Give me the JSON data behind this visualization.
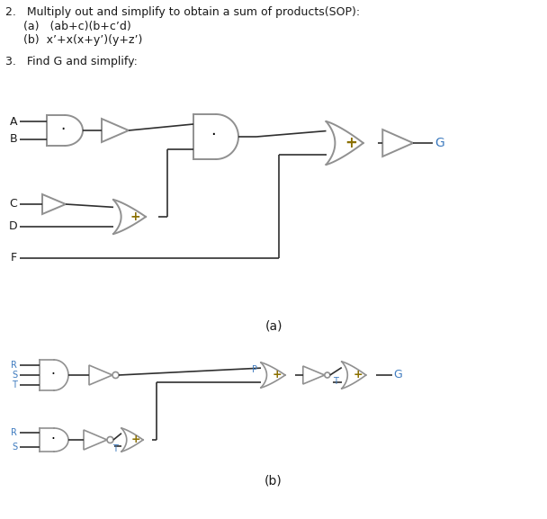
{
  "title_text": "2.   Multiply out and simplify to obtain a sum of products(SOP):",
  "sub_a": "     (a)   (ab+c)(b+c’d)",
  "sub_b": "     (b)  x’+x(x+y’)(y+z’)",
  "item3": "3.   Find G and simplify:",
  "label_a": "(a)",
  "label_b": "(b)",
  "text_color": "#3d7abf",
  "gate_color": "#909090",
  "line_color": "#303030",
  "bg_color": "#ffffff",
  "plus_color": "#8B7000"
}
